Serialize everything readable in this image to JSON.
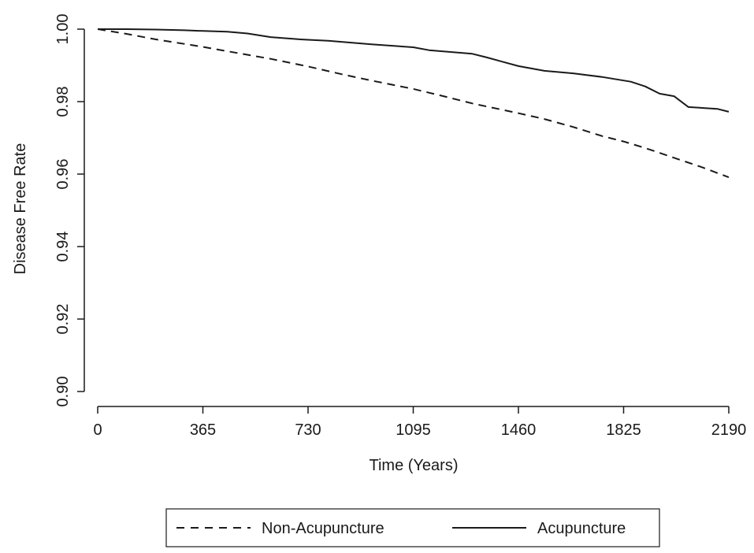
{
  "chart_data": {
    "type": "line",
    "title": "",
    "xlabel": "Time (Years)",
    "ylabel": "Disease Free Rate",
    "xlim": [
      0,
      2190
    ],
    "ylim": [
      0.9,
      1.0
    ],
    "xticks": [
      0,
      365,
      730,
      1095,
      1460,
      1825,
      2190
    ],
    "xtick_labels": [
      "0",
      "365",
      "730",
      "1095",
      "1460",
      "1825",
      "2190"
    ],
    "yticks": [
      0.9,
      0.92,
      0.94,
      0.96,
      0.98,
      1.0
    ],
    "ytick_labels": [
      "0.90",
      "0.92",
      "0.94",
      "0.96",
      "0.98",
      "1.00"
    ],
    "grid": false,
    "legend_position": "bottom",
    "series": [
      {
        "name": "Non-Acupuncture",
        "style": "dashed",
        "color": "#1a1a1a",
        "x": [
          0,
          100,
          200,
          365,
          500,
          600,
          730,
          850,
          950,
          1095,
          1200,
          1300,
          1460,
          1550,
          1650,
          1750,
          1825,
          1900,
          2000,
          2100,
          2190
        ],
        "y": [
          1.0,
          0.9987,
          0.9972,
          0.9951,
          0.9932,
          0.9918,
          0.9897,
          0.9875,
          0.9858,
          0.9835,
          0.9815,
          0.9795,
          0.9768,
          0.9752,
          0.973,
          0.9705,
          0.969,
          0.9672,
          0.9645,
          0.9618,
          0.9591
        ]
      },
      {
        "name": "Acupuncture",
        "style": "solid",
        "color": "#1a1a1a",
        "x": [
          0,
          100,
          200,
          300,
          365,
          450,
          520,
          600,
          700,
          800,
          950,
          1095,
          1150,
          1300,
          1350,
          1460,
          1550,
          1650,
          1750,
          1850,
          1900,
          1950,
          2000,
          2050,
          2150,
          2190
        ],
        "y": [
          1.0,
          1.0,
          0.9999,
          0.9997,
          0.9995,
          0.9993,
          0.9988,
          0.9978,
          0.9972,
          0.9968,
          0.9958,
          0.995,
          0.9942,
          0.9932,
          0.9922,
          0.9898,
          0.9885,
          0.9878,
          0.9868,
          0.9855,
          0.9842,
          0.9822,
          0.9815,
          0.9785,
          0.978,
          0.9772
        ]
      }
    ]
  }
}
